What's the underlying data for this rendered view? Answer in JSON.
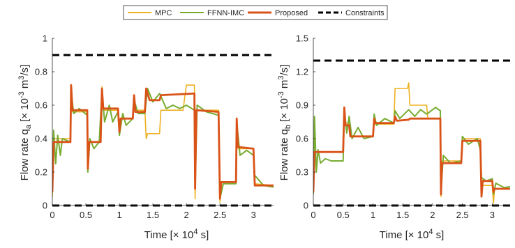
{
  "legend": {
    "entries": [
      {
        "name": "MPC",
        "color": "#edb120",
        "style": "solid"
      },
      {
        "name": "FFNN-IMC",
        "color": "#77ac30",
        "style": "solid"
      },
      {
        "name": "Proposed",
        "color": "#d95319",
        "style": "solid"
      },
      {
        "name": "Constraints",
        "color": "#000000",
        "style": "dashed"
      }
    ],
    "placement": "top-center"
  },
  "chart_data": [
    {
      "type": "line",
      "xlabel": "Time [× 10⁴ s]",
      "ylabel": "Flow rate q_a [× 10⁻³ m³/s]",
      "ylabel_parts": {
        "pre": "Flow rate q",
        "sub": "a",
        "mid": " [× 10",
        "sup1": "-3",
        "unit": " m",
        "sup2": "3",
        "post": "/s]"
      },
      "xlim": [
        0,
        3.3
      ],
      "ylim": [
        0,
        1
      ],
      "xticks": [
        0,
        0.5,
        1,
        1.5,
        2,
        2.5,
        3
      ],
      "xtick_labels": [
        "0",
        "0.5",
        "1",
        "1.5",
        "2",
        "2.5",
        "3"
      ],
      "yticks": [
        0,
        0.2,
        0.4,
        0.6,
        0.8,
        1
      ],
      "ytick_labels": [
        "0",
        "0.2",
        "0.4",
        "0.6",
        "0.8",
        "1"
      ],
      "grid": false,
      "constraints": [
        0,
        0.9
      ],
      "series": [
        {
          "name": "MPC",
          "points": [
            [
              0,
              0.05
            ],
            [
              0.02,
              0.4
            ],
            [
              0.27,
              0.4
            ],
            [
              0.28,
              0.72
            ],
            [
              0.3,
              0.56
            ],
            [
              0.52,
              0.56
            ],
            [
              0.53,
              0.22
            ],
            [
              0.55,
              0.38
            ],
            [
              0.72,
              0.38
            ],
            [
              0.74,
              0.71
            ],
            [
              0.76,
              0.57
            ],
            [
              0.98,
              0.57
            ],
            [
              1.0,
              0.44
            ],
            [
              1.02,
              0.52
            ],
            [
              1.2,
              0.52
            ],
            [
              1.22,
              0.66
            ],
            [
              1.24,
              0.57
            ],
            [
              1.38,
              0.57
            ],
            [
              1.4,
              0.4
            ],
            [
              1.42,
              0.43
            ],
            [
              1.6,
              0.43
            ],
            [
              1.62,
              0.57
            ],
            [
              1.95,
              0.57
            ],
            [
              2.0,
              0.72
            ],
            [
              2.12,
              0.72
            ],
            [
              2.13,
              0.04
            ],
            [
              2.15,
              0.57
            ],
            [
              2.48,
              0.57
            ],
            [
              2.5,
              0.02
            ],
            [
              2.52,
              0.14
            ],
            [
              2.74,
              0.14
            ],
            [
              2.75,
              0.52
            ],
            [
              2.77,
              0.34
            ],
            [
              3.0,
              0.34
            ],
            [
              3.02,
              0.13
            ],
            [
              3.3,
              0.12
            ]
          ]
        },
        {
          "name": "FFNN-IMC",
          "points": [
            [
              0,
              0.1
            ],
            [
              0.02,
              0.45
            ],
            [
              0.05,
              0.25
            ],
            [
              0.08,
              0.42
            ],
            [
              0.12,
              0.3
            ],
            [
              0.15,
              0.4
            ],
            [
              0.27,
              0.38
            ],
            [
              0.28,
              0.68
            ],
            [
              0.32,
              0.55
            ],
            [
              0.4,
              0.58
            ],
            [
              0.52,
              0.54
            ],
            [
              0.53,
              0.2
            ],
            [
              0.56,
              0.4
            ],
            [
              0.62,
              0.34
            ],
            [
              0.7,
              0.38
            ],
            [
              0.74,
              0.69
            ],
            [
              0.78,
              0.5
            ],
            [
              0.85,
              0.6
            ],
            [
              0.9,
              0.5
            ],
            [
              0.98,
              0.56
            ],
            [
              1.0,
              0.42
            ],
            [
              1.05,
              0.55
            ],
            [
              1.1,
              0.48
            ],
            [
              1.2,
              0.52
            ],
            [
              1.22,
              0.63
            ],
            [
              1.28,
              0.55
            ],
            [
              1.38,
              0.55
            ],
            [
              1.42,
              0.7
            ],
            [
              1.5,
              0.62
            ],
            [
              1.6,
              0.67
            ],
            [
              1.7,
              0.58
            ],
            [
              1.8,
              0.6
            ],
            [
              1.9,
              0.58
            ],
            [
              2.0,
              0.6
            ],
            [
              2.12,
              0.57
            ],
            [
              2.13,
              0.1
            ],
            [
              2.16,
              0.6
            ],
            [
              2.3,
              0.56
            ],
            [
              2.48,
              0.54
            ],
            [
              2.5,
              0.04
            ],
            [
              2.55,
              0.13
            ],
            [
              2.74,
              0.13
            ],
            [
              2.75,
              0.5
            ],
            [
              2.8,
              0.3
            ],
            [
              2.9,
              0.33
            ],
            [
              3.0,
              0.3
            ],
            [
              3.02,
              0.18
            ],
            [
              3.15,
              0.12
            ],
            [
              3.3,
              0.11
            ]
          ]
        },
        {
          "name": "Proposed",
          "points": [
            [
              0,
              0.08
            ],
            [
              0.02,
              0.38
            ],
            [
              0.27,
              0.38
            ],
            [
              0.28,
              0.72
            ],
            [
              0.3,
              0.57
            ],
            [
              0.52,
              0.57
            ],
            [
              0.53,
              0.22
            ],
            [
              0.55,
              0.38
            ],
            [
              0.72,
              0.38
            ],
            [
              0.74,
              0.7
            ],
            [
              0.76,
              0.58
            ],
            [
              0.98,
              0.58
            ],
            [
              1.0,
              0.44
            ],
            [
              1.02,
              0.52
            ],
            [
              1.2,
              0.52
            ],
            [
              1.22,
              0.66
            ],
            [
              1.24,
              0.56
            ],
            [
              1.38,
              0.56
            ],
            [
              1.4,
              0.7
            ],
            [
              1.45,
              0.63
            ],
            [
              1.6,
              0.63
            ],
            [
              1.62,
              0.66
            ],
            [
              2.12,
              0.67
            ],
            [
              2.13,
              0.1
            ],
            [
              2.15,
              0.57
            ],
            [
              2.48,
              0.56
            ],
            [
              2.5,
              0.04
            ],
            [
              2.52,
              0.14
            ],
            [
              2.74,
              0.14
            ],
            [
              2.75,
              0.52
            ],
            [
              2.77,
              0.35
            ],
            [
              3.0,
              0.34
            ],
            [
              3.02,
              0.12
            ],
            [
              3.3,
              0.12
            ]
          ]
        }
      ]
    },
    {
      "type": "line",
      "xlabel": "Time [× 10⁴ s]",
      "ylabel": "Flow rate q_b [× 10⁻³ m³/s]",
      "ylabel_parts": {
        "pre": "Flow rate q",
        "sub": "b",
        "mid": " [× 10",
        "sup1": "-3",
        "unit": " m",
        "sup2": "3",
        "post": "/s]"
      },
      "xlim": [
        0,
        3.3
      ],
      "ylim": [
        0,
        1.5
      ],
      "xticks": [
        0,
        0.5,
        1,
        1.5,
        2,
        2.5,
        3
      ],
      "xtick_labels": [
        "0",
        "0.5",
        "1",
        "1.5",
        "2",
        "2.5",
        "3"
      ],
      "yticks": [
        0,
        0.3,
        0.6,
        0.9,
        1.2,
        1.5
      ],
      "ytick_labels": [
        "0",
        "0.3",
        "0.6",
        "0.9",
        "1.2",
        "1.5"
      ],
      "grid": false,
      "constraints": [
        0,
        1.3
      ],
      "series": [
        {
          "name": "MPC",
          "points": [
            [
              0,
              0.1
            ],
            [
              0.02,
              0.48
            ],
            [
              0.5,
              0.48
            ],
            [
              0.52,
              0.88
            ],
            [
              0.54,
              0.74
            ],
            [
              0.6,
              0.74
            ],
            [
              0.62,
              0.62
            ],
            [
              1.0,
              0.62
            ],
            [
              1.02,
              0.78
            ],
            [
              1.04,
              0.73
            ],
            [
              1.35,
              0.73
            ],
            [
              1.37,
              1.05
            ],
            [
              1.58,
              1.05
            ],
            [
              1.6,
              1.1
            ],
            [
              1.62,
              0.9
            ],
            [
              1.9,
              0.9
            ],
            [
              1.92,
              0.78
            ],
            [
              2.13,
              0.78
            ],
            [
              2.14,
              0.08
            ],
            [
              2.16,
              0.4
            ],
            [
              2.48,
              0.4
            ],
            [
              2.5,
              0.6
            ],
            [
              2.8,
              0.6
            ],
            [
              2.82,
              0.2
            ],
            [
              2.84,
              0.18
            ],
            [
              3.0,
              0.18
            ],
            [
              3.02,
              0.02
            ],
            [
              3.04,
              0.15
            ],
            [
              3.3,
              0.15
            ]
          ]
        },
        {
          "name": "FFNN-IMC",
          "points": [
            [
              0,
              0.1
            ],
            [
              0.02,
              0.8
            ],
            [
              0.05,
              0.3
            ],
            [
              0.08,
              0.5
            ],
            [
              0.12,
              0.38
            ],
            [
              0.2,
              0.42
            ],
            [
              0.3,
              0.4
            ],
            [
              0.5,
              0.4
            ],
            [
              0.52,
              0.85
            ],
            [
              0.56,
              0.65
            ],
            [
              0.6,
              0.8
            ],
            [
              0.65,
              0.6
            ],
            [
              0.75,
              0.7
            ],
            [
              0.85,
              0.6
            ],
            [
              1.0,
              0.62
            ],
            [
              1.02,
              0.82
            ],
            [
              1.06,
              0.72
            ],
            [
              1.2,
              0.78
            ],
            [
              1.35,
              0.74
            ],
            [
              1.37,
              0.85
            ],
            [
              1.45,
              0.78
            ],
            [
              1.6,
              0.86
            ],
            [
              1.7,
              0.8
            ],
            [
              1.8,
              0.86
            ],
            [
              1.9,
              0.82
            ],
            [
              2.05,
              0.88
            ],
            [
              2.13,
              0.85
            ],
            [
              2.14,
              0.12
            ],
            [
              2.18,
              0.45
            ],
            [
              2.3,
              0.38
            ],
            [
              2.48,
              0.4
            ],
            [
              2.5,
              0.62
            ],
            [
              2.6,
              0.55
            ],
            [
              2.75,
              0.6
            ],
            [
              2.8,
              0.5
            ],
            [
              2.82,
              0.25
            ],
            [
              2.9,
              0.22
            ],
            [
              3.0,
              0.24
            ],
            [
              3.02,
              0.1
            ],
            [
              3.06,
              0.2
            ],
            [
              3.2,
              0.16
            ],
            [
              3.3,
              0.17
            ]
          ]
        },
        {
          "name": "Proposed",
          "points": [
            [
              0,
              0.12
            ],
            [
              0.02,
              0.48
            ],
            [
              0.5,
              0.48
            ],
            [
              0.52,
              0.88
            ],
            [
              0.54,
              0.72
            ],
            [
              0.6,
              0.72
            ],
            [
              0.62,
              0.62
            ],
            [
              1.0,
              0.62
            ],
            [
              1.02,
              0.78
            ],
            [
              1.04,
              0.74
            ],
            [
              1.35,
              0.74
            ],
            [
              1.37,
              0.8
            ],
            [
              1.4,
              0.76
            ],
            [
              1.6,
              0.77
            ],
            [
              1.62,
              0.78
            ],
            [
              2.13,
              0.78
            ],
            [
              2.14,
              0.1
            ],
            [
              2.16,
              0.38
            ],
            [
              2.48,
              0.38
            ],
            [
              2.5,
              0.58
            ],
            [
              2.8,
              0.58
            ],
            [
              2.82,
              0.08
            ],
            [
              2.84,
              0.22
            ],
            [
              3.0,
              0.22
            ],
            [
              3.02,
              0.12
            ],
            [
              3.04,
              0.15
            ],
            [
              3.3,
              0.15
            ]
          ]
        }
      ]
    }
  ]
}
